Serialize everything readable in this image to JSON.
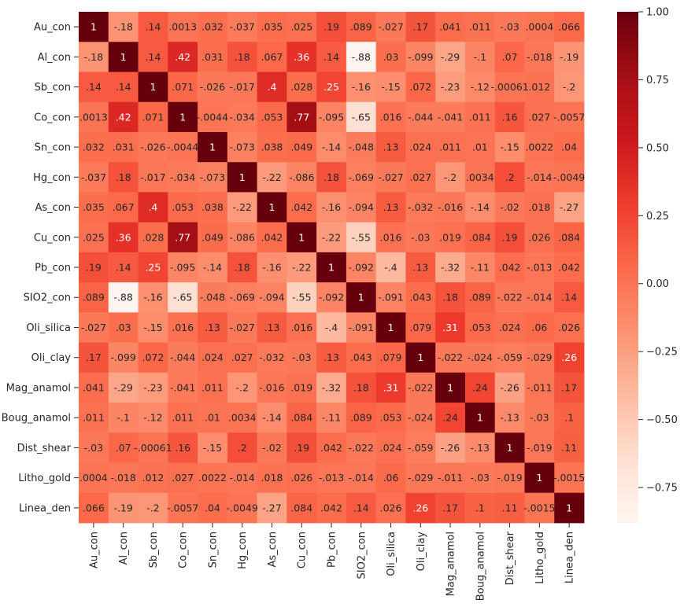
{
  "chart_data": {
    "type": "heatmap",
    "title": "",
    "xlabel": "",
    "ylabel": "",
    "colormap": "Reds",
    "vmin": -0.88,
    "vmax": 1.0,
    "rows": [
      "Au_con",
      "Al_con",
      "Sb_con",
      "Co_con",
      "Sn_con",
      "Hg_con",
      "As_con",
      "Cu_con",
      "Pb_con",
      "SIO2_con",
      "Oli_silica",
      "Oli_clay",
      "Mag_anamol",
      "Boug_anamol",
      "Dist_shear",
      "Litho_gold",
      "Linea_den"
    ],
    "columns": [
      "Au_con",
      "Al_con",
      "Sb_con",
      "Co_con",
      "Sn_con",
      "Hg_con",
      "As_con",
      "Cu_con",
      "Pb_con",
      "SIO2_con",
      "Oli_silica",
      "Oli_clay",
      "Mag_anamol",
      "Boug_anamol",
      "Dist_shear",
      "Litho_gold",
      "Linea_den"
    ],
    "values": [
      [
        1,
        -0.18,
        0.14,
        0.0013,
        0.032,
        -0.037,
        0.035,
        0.025,
        0.19,
        0.089,
        -0.027,
        0.17,
        0.041,
        0.011,
        -0.03,
        0.0004,
        0.066
      ],
      [
        -0.18,
        1,
        0.14,
        0.42,
        0.031,
        0.18,
        0.067,
        0.36,
        0.14,
        -0.88,
        0.03,
        -0.099,
        -0.29,
        -0.1,
        0.07,
        -0.018,
        -0.19
      ],
      [
        0.14,
        0.14,
        1,
        0.071,
        -0.026,
        -0.017,
        0.4,
        0.028,
        0.25,
        -0.16,
        -0.15,
        0.072,
        -0.23,
        -0.12,
        -0.00061,
        0.012,
        -0.2
      ],
      [
        0.0013,
        0.42,
        0.071,
        1,
        -0.0044,
        -0.034,
        0.053,
        0.77,
        -0.095,
        -0.65,
        0.016,
        -0.044,
        -0.041,
        0.011,
        0.16,
        0.027,
        -0.0057
      ],
      [
        0.032,
        0.031,
        -0.026,
        -0.0044,
        1,
        -0.073,
        0.038,
        0.049,
        -0.14,
        -0.048,
        0.13,
        0.024,
        0.011,
        0.01,
        -0.15,
        0.0022,
        0.04
      ],
      [
        -0.037,
        0.18,
        -0.017,
        -0.034,
        -0.073,
        1,
        -0.22,
        -0.086,
        0.18,
        -0.069,
        -0.027,
        0.027,
        -0.2,
        0.0034,
        0.2,
        -0.014,
        -0.0049
      ],
      [
        0.035,
        0.067,
        0.4,
        0.053,
        0.038,
        -0.22,
        1,
        0.042,
        -0.16,
        -0.094,
        0.13,
        -0.032,
        -0.016,
        -0.14,
        -0.02,
        0.018,
        -0.27
      ],
      [
        0.025,
        0.36,
        0.028,
        0.77,
        0.049,
        -0.086,
        0.042,
        1,
        -0.22,
        -0.55,
        0.016,
        -0.03,
        0.019,
        0.084,
        0.19,
        0.026,
        0.084
      ],
      [
        0.19,
        0.14,
        0.25,
        -0.095,
        -0.14,
        0.18,
        -0.16,
        -0.22,
        1,
        -0.092,
        -0.4,
        0.13,
        -0.32,
        -0.11,
        0.042,
        -0.013,
        0.042
      ],
      [
        0.089,
        -0.88,
        -0.16,
        -0.65,
        -0.048,
        -0.069,
        -0.094,
        -0.55,
        -0.092,
        1,
        -0.091,
        0.043,
        0.18,
        0.089,
        -0.022,
        -0.014,
        0.14
      ],
      [
        -0.027,
        0.03,
        -0.15,
        0.016,
        0.13,
        -0.027,
        0.13,
        0.016,
        -0.4,
        -0.091,
        1,
        0.079,
        0.31,
        0.053,
        0.024,
        0.06,
        0.026
      ],
      [
        0.17,
        -0.099,
        0.072,
        -0.044,
        0.024,
        0.027,
        -0.032,
        -0.03,
        0.13,
        0.043,
        0.079,
        1,
        -0.022,
        -0.024,
        -0.059,
        -0.029,
        0.26
      ],
      [
        0.041,
        -0.29,
        -0.23,
        -0.041,
        0.011,
        -0.2,
        -0.016,
        0.019,
        -0.32,
        0.18,
        0.31,
        -0.022,
        1,
        0.24,
        -0.26,
        -0.011,
        0.17
      ],
      [
        0.011,
        -0.1,
        -0.12,
        0.011,
        0.01,
        0.0034,
        -0.14,
        0.084,
        -0.11,
        0.089,
        0.053,
        -0.024,
        0.24,
        1,
        -0.13,
        -0.03,
        0.1
      ],
      [
        -0.03,
        0.07,
        -0.00061,
        0.16,
        -0.15,
        0.2,
        -0.02,
        0.19,
        0.042,
        -0.022,
        0.024,
        -0.059,
        -0.26,
        -0.13,
        1,
        -0.019,
        0.11
      ],
      [
        0.0004,
        -0.018,
        0.012,
        0.027,
        0.0022,
        -0.014,
        0.018,
        0.026,
        -0.013,
        -0.014,
        0.06,
        -0.029,
        -0.011,
        -0.03,
        -0.019,
        1,
        -0.0015
      ],
      [
        0.066,
        -0.19,
        -0.2,
        -0.0057,
        0.04,
        -0.0049,
        -0.27,
        0.084,
        0.042,
        0.14,
        0.026,
        0.26,
        0.17,
        0.1,
        0.11,
        -0.0015,
        1
      ]
    ],
    "colorbar": {
      "ticks": [
        1.0,
        0.75,
        0.5,
        0.25,
        0.0,
        -0.25,
        -0.5,
        -0.75
      ],
      "tick_labels": [
        "1.00",
        "0.75",
        "0.50",
        "0.25",
        "0.00",
        "−0.25",
        "−0.50",
        "−0.75"
      ]
    }
  }
}
